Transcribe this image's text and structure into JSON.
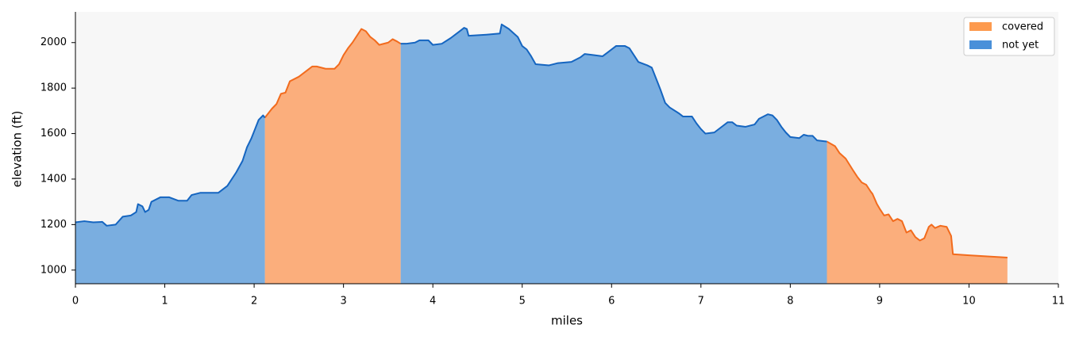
{
  "chart_data": {
    "type": "area",
    "xlabel": "miles",
    "ylabel": "elevation (ft)",
    "xlim": [
      0,
      11
    ],
    "xticks": [
      0,
      1,
      2,
      3,
      4,
      5,
      6,
      7,
      8,
      9,
      10,
      11
    ],
    "ylim": [
      940,
      2135
    ],
    "yticks": [
      1000,
      1200,
      1400,
      1600,
      1800,
      2000
    ],
    "legend": "upper right",
    "background": "#f7f7f7",
    "series": [
      {
        "name": "covered",
        "color": "#fd9a4e",
        "line_color": "#f26b1d",
        "fill_color": "#fbae7c",
        "segments": [
          {
            "x": [
              2.12,
              2.2,
              2.25,
              2.3,
              2.35,
              2.4,
              2.5,
              2.6,
              2.65,
              2.7,
              2.8,
              2.9,
              2.95,
              3.0,
              3.05,
              3.1,
              3.15,
              3.2,
              3.25,
              3.3,
              3.35,
              3.4,
              3.5,
              3.55,
              3.6,
              3.64
            ],
            "values": [
              1670,
              1710,
              1730,
              1775,
              1780,
              1830,
              1850,
              1880,
              1895,
              1895,
              1885,
              1885,
              1905,
              1945,
              1975,
              2000,
              2030,
              2060,
              2050,
              2025,
              2010,
              1990,
              2000,
              2015,
              2005,
              1995
            ]
          },
          {
            "x": [
              8.41,
              8.5,
              8.55,
              8.62,
              8.7,
              8.75,
              8.8,
              8.85,
              8.9,
              8.92,
              8.97,
              9.0,
              9.05,
              9.1,
              9.15,
              9.2,
              9.25,
              9.3,
              9.35,
              9.4,
              9.45,
              9.5,
              9.55,
              9.58,
              9.62,
              9.68,
              9.75,
              9.8,
              9.82,
              10.0,
              10.43
            ],
            "values": [
              1565,
              1545,
              1515,
              1490,
              1440,
              1410,
              1385,
              1375,
              1345,
              1335,
              1290,
              1270,
              1240,
              1245,
              1215,
              1225,
              1215,
              1165,
              1175,
              1145,
              1130,
              1140,
              1190,
              1200,
              1185,
              1195,
              1190,
              1150,
              1070,
              1065,
              1055
            ]
          }
        ]
      },
      {
        "name": "not yet",
        "color": "#4a90d9",
        "line_color": "#1565c0",
        "fill_color": "#7aaee0",
        "segments": [
          {
            "x": [
              0,
              0.1,
              0.2,
              0.3,
              0.35,
              0.45,
              0.53,
              0.62,
              0.68,
              0.7,
              0.75,
              0.78,
              0.82,
              0.85,
              0.95,
              1.05,
              1.15,
              1.25,
              1.3,
              1.4,
              1.5,
              1.6,
              1.7,
              1.8,
              1.87,
              1.92,
              1.97,
              2.0,
              2.05,
              2.1,
              2.12
            ],
            "values": [
              1210,
              1215,
              1210,
              1212,
              1195,
              1200,
              1235,
              1240,
              1255,
              1290,
              1280,
              1255,
              1265,
              1300,
              1320,
              1320,
              1305,
              1305,
              1330,
              1340,
              1340,
              1340,
              1370,
              1430,
              1480,
              1540,
              1580,
              1610,
              1660,
              1680,
              1670
            ]
          },
          {
            "x": [
              3.64,
              3.7,
              3.8,
              3.85,
              3.95,
              4.0,
              4.1,
              4.2,
              4.3,
              4.35,
              4.38,
              4.4,
              4.6,
              4.75,
              4.77,
              4.85,
              4.95,
              5.0,
              5.05,
              5.1,
              5.15,
              5.3,
              5.4,
              5.55,
              5.65,
              5.7,
              5.8,
              5.9,
              5.95,
              6.05,
              6.15,
              6.2,
              6.25,
              6.3,
              6.4,
              6.45,
              6.5,
              6.55,
              6.6,
              6.65,
              6.75,
              6.8,
              6.9,
              6.95,
              7.0,
              7.05,
              7.15,
              7.25,
              7.3,
              7.35,
              7.4,
              7.5,
              7.6,
              7.65,
              7.75,
              7.8,
              7.85,
              7.9,
              7.95,
              8.0,
              8.1,
              8.15,
              8.2,
              8.25,
              8.3,
              8.41
            ],
            "values": [
              1995,
              1995,
              2000,
              2010,
              2010,
              1990,
              1995,
              2020,
              2050,
              2065,
              2060,
              2030,
              2035,
              2040,
              2080,
              2060,
              2025,
              1985,
              1970,
              1940,
              1905,
              1900,
              1910,
              1915,
              1935,
              1950,
              1945,
              1940,
              1955,
              1985,
              1985,
              1975,
              1945,
              1915,
              1900,
              1890,
              1840,
              1790,
              1735,
              1715,
              1690,
              1675,
              1675,
              1645,
              1620,
              1600,
              1605,
              1635,
              1650,
              1650,
              1635,
              1630,
              1640,
              1665,
              1685,
              1680,
              1660,
              1630,
              1605,
              1585,
              1580,
              1595,
              1590,
              1590,
              1570,
              1565
            ]
          }
        ]
      }
    ]
  }
}
